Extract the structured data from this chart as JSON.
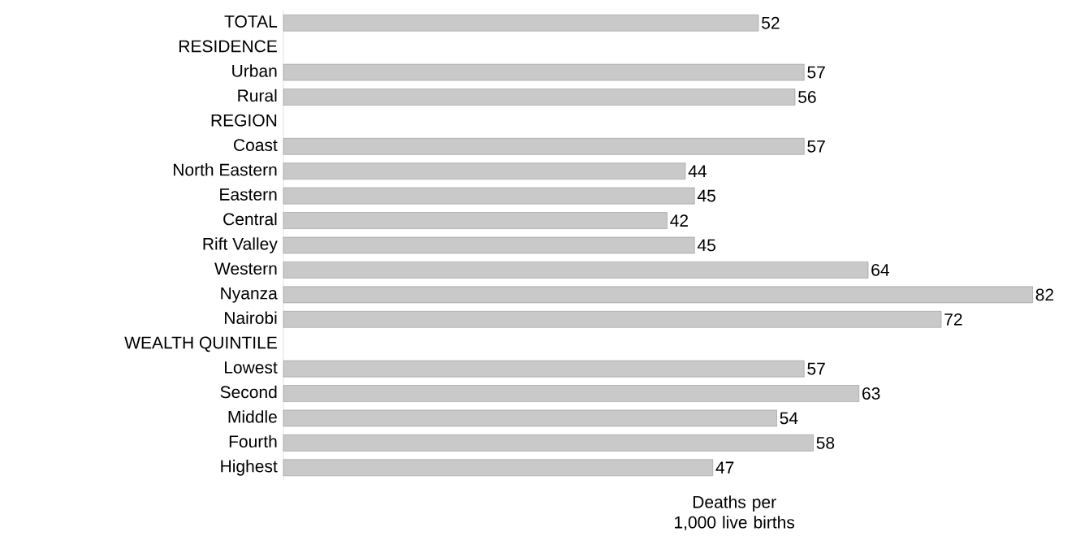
{
  "chart_data": {
    "type": "bar",
    "orientation": "horizontal",
    "xlabel": "Deaths per 1,000 live births",
    "categories": [
      "TOTAL",
      "RESIDENCE",
      "Urban",
      "Rural",
      "REGION",
      "Coast",
      "North Eastern",
      "Eastern",
      "Central",
      "Rift Valley",
      "Western",
      "Nyanza",
      "Nairobi",
      "WEALTH QUINTILE",
      "Lowest",
      "Second",
      "Middle",
      "Fourth",
      "Highest"
    ],
    "values": [
      52,
      null,
      57,
      56,
      null,
      57,
      44,
      45,
      42,
      45,
      64,
      82,
      72,
      null,
      57,
      63,
      54,
      58,
      47
    ],
    "color": "#c9c9c9",
    "data_labels": true,
    "tick_labels": "y",
    "grid": false
  }
}
